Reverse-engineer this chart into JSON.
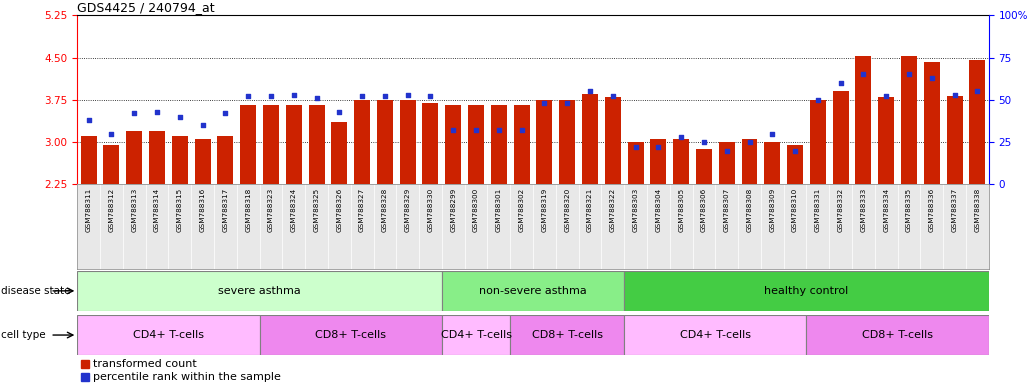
{
  "title": "GDS4425 / 240794_at",
  "samples": [
    "GSM788311",
    "GSM788312",
    "GSM788313",
    "GSM788314",
    "GSM788315",
    "GSM788316",
    "GSM788317",
    "GSM788318",
    "GSM788323",
    "GSM788324",
    "GSM788325",
    "GSM788326",
    "GSM788327",
    "GSM788328",
    "GSM788329",
    "GSM788330",
    "GSM788299",
    "GSM788300",
    "GSM788301",
    "GSM788302",
    "GSM788319",
    "GSM788320",
    "GSM788321",
    "GSM788322",
    "GSM788303",
    "GSM788304",
    "GSM788305",
    "GSM788306",
    "GSM788307",
    "GSM788308",
    "GSM788309",
    "GSM788310",
    "GSM788331",
    "GSM788332",
    "GSM788333",
    "GSM788334",
    "GSM788335",
    "GSM788336",
    "GSM788337",
    "GSM788338"
  ],
  "bar_values": [
    3.1,
    2.95,
    3.2,
    3.2,
    3.1,
    3.05,
    3.1,
    3.65,
    3.65,
    3.65,
    3.65,
    3.35,
    3.75,
    3.75,
    3.75,
    3.7,
    3.65,
    3.65,
    3.65,
    3.65,
    3.75,
    3.75,
    3.85,
    3.8,
    3.0,
    3.05,
    3.05,
    2.88,
    3.0,
    3.05,
    3.0,
    2.95,
    3.75,
    3.9,
    4.52,
    3.8,
    4.52,
    4.42,
    3.82,
    4.45
  ],
  "percentile_values": [
    38,
    30,
    42,
    43,
    40,
    35,
    42,
    52,
    52,
    53,
    51,
    43,
    52,
    52,
    53,
    52,
    32,
    32,
    32,
    32,
    48,
    48,
    55,
    52,
    22,
    22,
    28,
    25,
    20,
    25,
    30,
    20,
    50,
    60,
    65,
    52,
    65,
    63,
    53,
    55
  ],
  "ylim_left": [
    2.25,
    5.25
  ],
  "ylim_right": [
    0,
    100
  ],
  "yticks_left": [
    2.25,
    3.0,
    3.75,
    4.5,
    5.25
  ],
  "yticks_right": [
    0,
    25,
    50,
    75,
    100
  ],
  "bar_color": "#cc2200",
  "dot_color": "#2233cc",
  "disease_state_groups": [
    {
      "label": "severe asthma",
      "start": 0,
      "end": 15,
      "color": "#ccffcc"
    },
    {
      "label": "non-severe asthma",
      "start": 16,
      "end": 23,
      "color": "#88ee88"
    },
    {
      "label": "healthy control",
      "start": 24,
      "end": 39,
      "color": "#44cc44"
    }
  ],
  "cell_type_groups": [
    {
      "label": "CD4+ T-cells",
      "start": 0,
      "end": 7,
      "color": "#ffbbff"
    },
    {
      "label": "CD8+ T-cells",
      "start": 8,
      "end": 15,
      "color": "#ee88ee"
    },
    {
      "label": "CD4+ T-cells",
      "start": 16,
      "end": 18,
      "color": "#ffbbff"
    },
    {
      "label": "CD8+ T-cells",
      "start": 19,
      "end": 23,
      "color": "#ee88ee"
    },
    {
      "label": "CD4+ T-cells",
      "start": 24,
      "end": 31,
      "color": "#ffbbff"
    },
    {
      "label": "CD8+ T-cells",
      "start": 32,
      "end": 39,
      "color": "#ee88ee"
    }
  ],
  "legend_items": [
    {
      "label": "transformed count",
      "color": "#cc2200"
    },
    {
      "label": "percentile rank within the sample",
      "color": "#2233cc"
    }
  ]
}
